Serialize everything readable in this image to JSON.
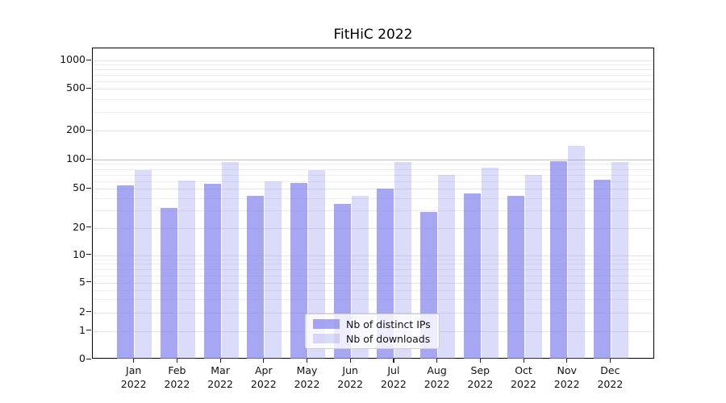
{
  "title": "FitHiC 2022",
  "chart_data": {
    "type": "bar",
    "title": "FitHiC 2022",
    "categories": [
      "Jan 2022",
      "Feb 2022",
      "Mar 2022",
      "Apr 2022",
      "May 2022",
      "Jun 2022",
      "Jul 2022",
      "Aug 2022",
      "Sep 2022",
      "Oct 2022",
      "Nov 2022",
      "Dec 2022"
    ],
    "series": [
      {
        "name": "Nb of distinct IPs",
        "color": "#8888ee",
        "alpha": 0.75,
        "values": [
          54,
          32,
          56,
          42,
          57,
          35,
          50,
          29,
          45,
          42,
          97,
          62
        ]
      },
      {
        "name": "Nb of downloads",
        "color": "#8888ee",
        "alpha": 0.3,
        "values": [
          78,
          61,
          94,
          59,
          78,
          42,
          95,
          70,
          82,
          70,
          140,
          94
        ]
      }
    ],
    "yscale": "symlog",
    "yticks": [
      0,
      1,
      2,
      5,
      10,
      20,
      50,
      100,
      200,
      500,
      1000
    ],
    "ylim": [
      0,
      1300
    ],
    "grid": true,
    "legend_position": "lower center",
    "xlabel": "",
    "ylabel": ""
  }
}
